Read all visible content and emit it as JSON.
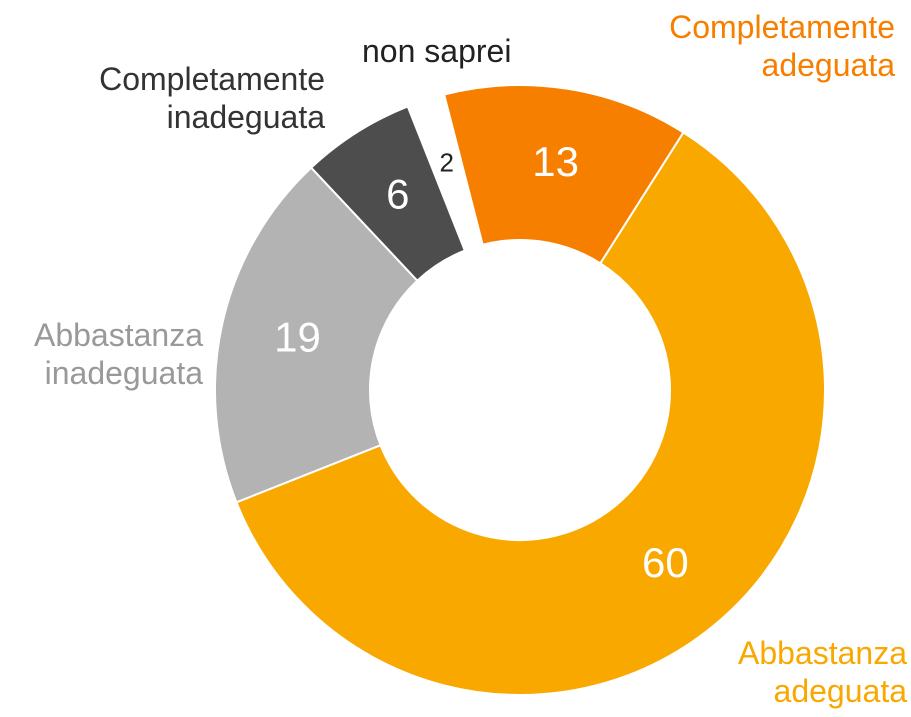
{
  "chart_data": {
    "type": "donut",
    "categories": [
      "Completamente adeguata",
      "Abbastanza adeguata",
      "Abbastanza inadeguata",
      "Completamente inadeguata",
      "non saprei"
    ],
    "values": [
      13,
      60,
      19,
      6,
      2
    ],
    "colors": [
      "#f77f00",
      "#f9a800",
      "#b3b3b3",
      "#4d4d4d",
      "#ffffff"
    ],
    "label_colors": [
      "#f77f00",
      "#f9a800",
      "#999999",
      "#333333",
      "#222222"
    ],
    "value_label_colors": [
      "#ffffff",
      "#ffffff",
      "#ffffff",
      "#ffffff",
      "#222222"
    ],
    "exploded": [
      false,
      false,
      false,
      false,
      true
    ]
  }
}
